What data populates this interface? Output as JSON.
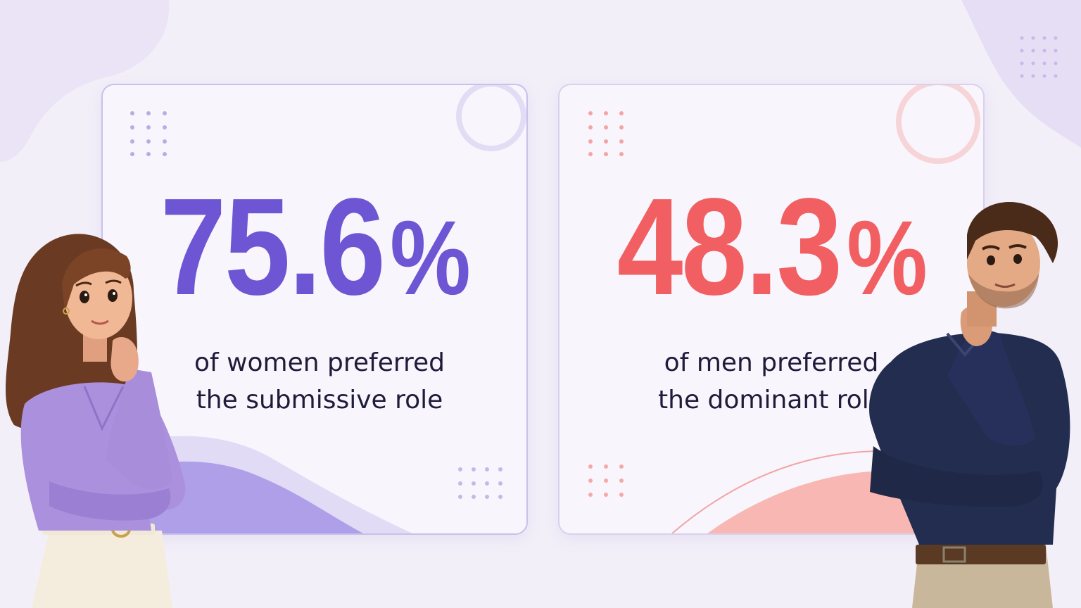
{
  "stats": [
    {
      "value": "75.6",
      "unit": "%",
      "caption_line1": "of women preferred",
      "caption_line2": "the submissive role",
      "accent": "#6e55d3"
    },
    {
      "value": "48.3",
      "unit": "%",
      "caption_line1": "of men preferred",
      "caption_line2": "the dominant role",
      "accent": "#f15f62"
    }
  ],
  "illustrations": {
    "left": "thinking-woman-illustration",
    "right": "thinking-man-illustration"
  },
  "colors": {
    "background": "#f3eff9",
    "women_accent": "#6e55d3",
    "men_accent": "#f15f62"
  }
}
